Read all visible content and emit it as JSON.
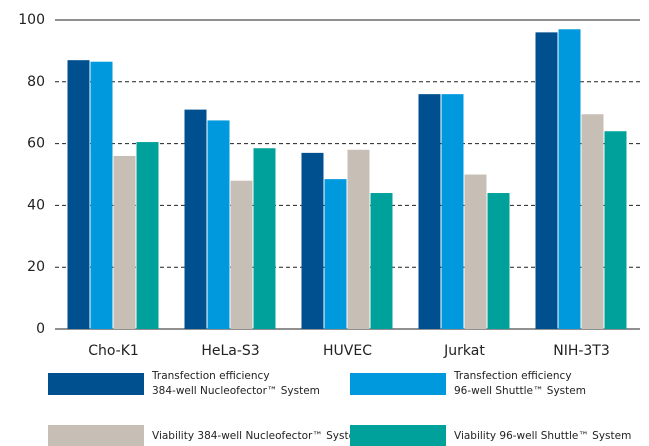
{
  "chart_data": {
    "type": "bar",
    "categories": [
      "Cho-K1",
      "HeLa-S3",
      "HUVEC",
      "Jurkat",
      "NIH-3T3"
    ],
    "series": [
      {
        "name": "Transfection efficiency\n384-well Nucleofector™ System",
        "color": "#004f8f",
        "values": [
          87,
          71,
          57,
          76,
          96
        ]
      },
      {
        "name": "Transfection efficiency\n96-well Shuttle™ System",
        "color": "#0099dd",
        "values": [
          86.5,
          67.5,
          48.5,
          76,
          97
        ]
      },
      {
        "name": "Viability 384-well Nucleofector™ System",
        "color": "#c7bfb5",
        "values": [
          56,
          48,
          58,
          50,
          69.5
        ]
      },
      {
        "name": "Viability 96-well Shuttle™ System",
        "color": "#00a19a",
        "values": [
          60.5,
          58.5,
          44,
          44,
          64
        ]
      }
    ],
    "ylim": [
      0,
      100
    ],
    "yticks": [
      0,
      20,
      40,
      60,
      80,
      100
    ],
    "grid": true
  }
}
